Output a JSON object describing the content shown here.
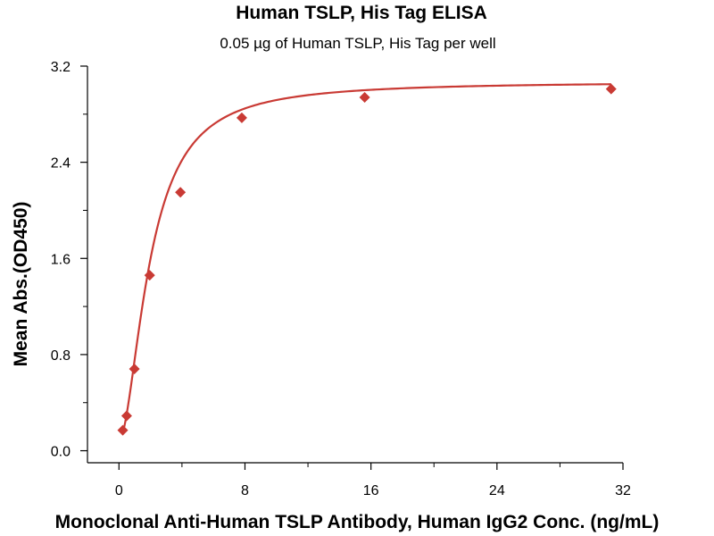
{
  "chart_data": {
    "type": "scatter",
    "title": "Human TSLP, His Tag ELISA",
    "subtitle": "0.05 µg of Human TSLP, His Tag per well",
    "xlabel": "Monoclonal Anti-Human TSLP Antibody, Human IgG2 Conc. (ng/mL)",
    "ylabel": "Mean Abs.(OD450)",
    "xlim": [
      -2,
      32
    ],
    "ylim": [
      -0.1,
      3.2
    ],
    "xticks": [
      "0",
      "8",
      "16",
      "24",
      "32"
    ],
    "yticks": [
      "0.0",
      "0.8",
      "1.6",
      "2.4",
      "3.2"
    ],
    "grid": false,
    "legend": "none",
    "series": [
      {
        "x": [
          0.24,
          0.49,
          0.98,
          1.95,
          3.9,
          7.8,
          15.6,
          31.25
        ],
        "y": [
          0.17,
          0.29,
          0.68,
          1.46,
          2.15,
          2.77,
          2.94,
          3.01
        ],
        "marker": "diamond",
        "color": "#c93a34",
        "fit_curve": "4-parameter logistic"
      }
    ]
  }
}
